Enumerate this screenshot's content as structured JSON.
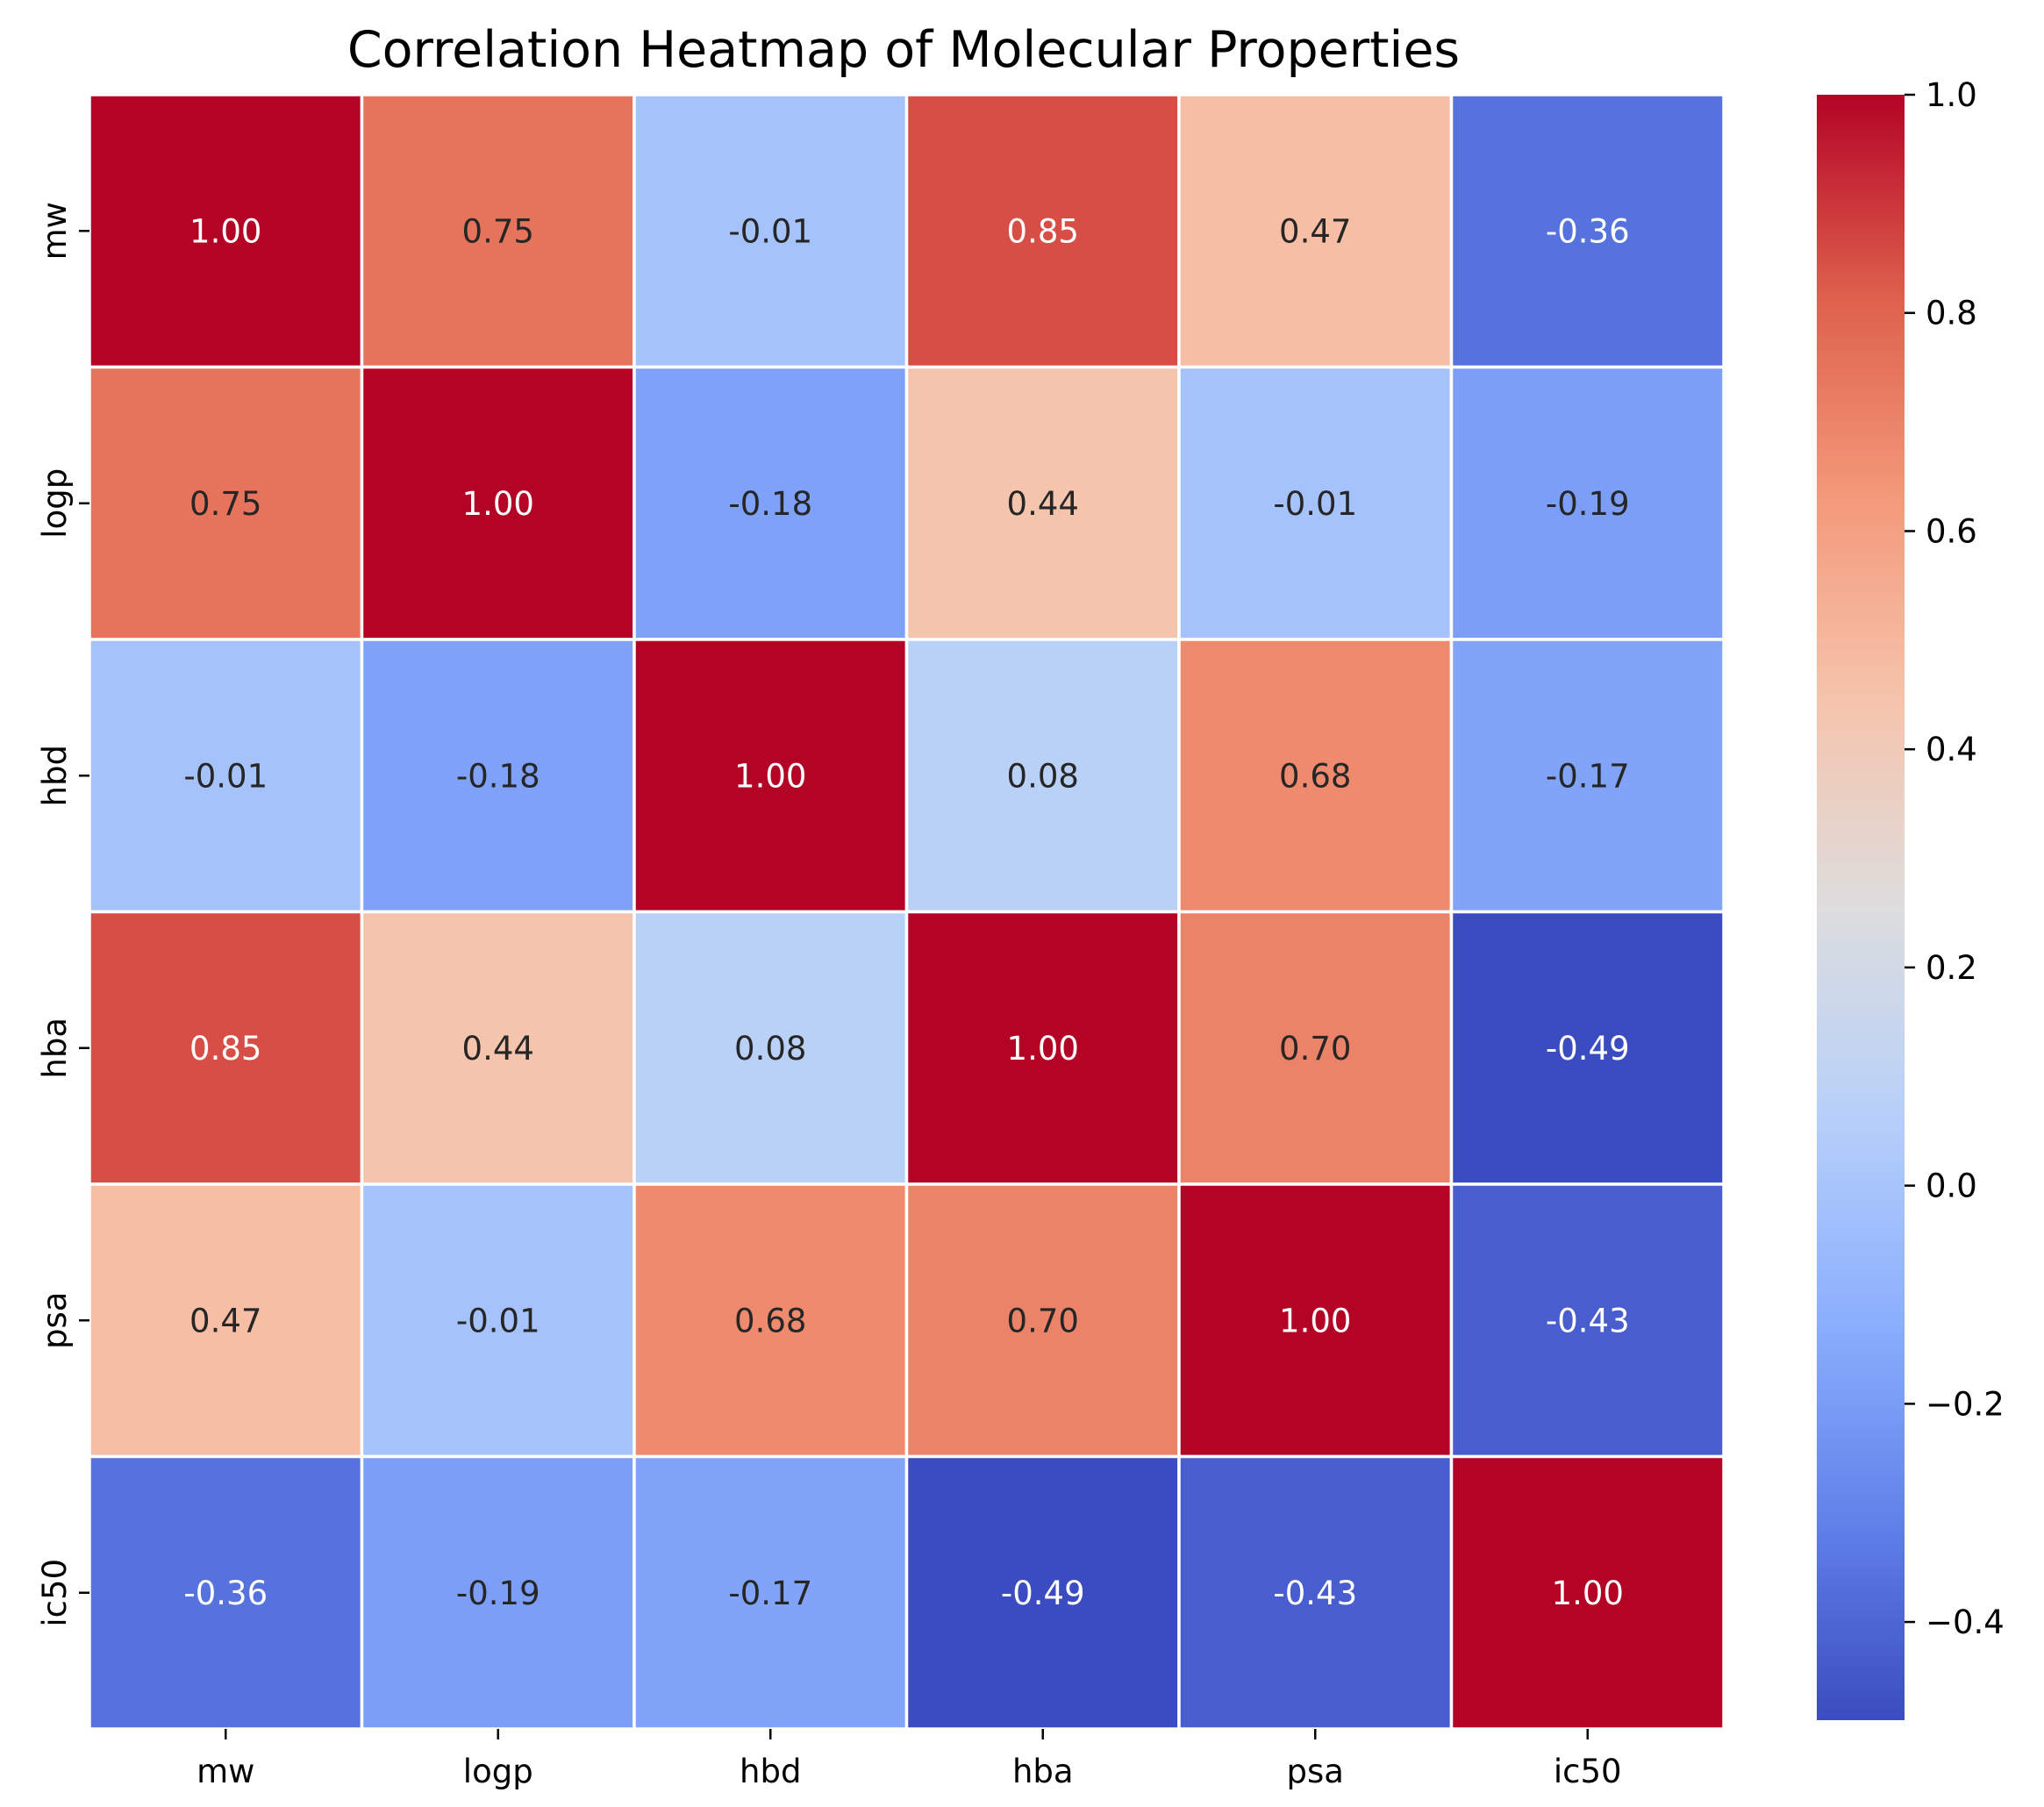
{
  "chart_data": {
    "type": "heatmap",
    "title": "Correlation Heatmap of Molecular Properties",
    "x_labels": [
      "mw",
      "logp",
      "hbd",
      "hba",
      "psa",
      "ic50"
    ],
    "y_labels": [
      "mw",
      "logp",
      "hbd",
      "hba",
      "psa",
      "ic50"
    ],
    "values": [
      [
        1.0,
        0.75,
        -0.01,
        0.85,
        0.47,
        -0.36
      ],
      [
        0.75,
        1.0,
        -0.18,
        0.44,
        -0.01,
        -0.19
      ],
      [
        -0.01,
        -0.18,
        1.0,
        0.08,
        0.68,
        -0.17
      ],
      [
        0.85,
        0.44,
        0.08,
        1.0,
        0.7,
        -0.49
      ],
      [
        0.47,
        -0.01,
        0.68,
        0.7,
        1.0,
        -0.43
      ],
      [
        -0.36,
        -0.19,
        -0.17,
        -0.49,
        -0.43,
        1.0
      ]
    ],
    "value_format": "2 decimals",
    "colormap": "coolwarm",
    "vmin": -0.49,
    "vmax": 1.0,
    "colorbar_ticks": [
      "1.0",
      "0.8",
      "0.6",
      "0.4",
      "0.2",
      "0.0",
      "−0.2",
      "−0.4"
    ],
    "colorbar_tick_values": [
      1.0,
      0.8,
      0.6,
      0.4,
      0.2,
      0.0,
      -0.2,
      -0.4
    ],
    "grid": false,
    "cell_border_color": "#ffffff",
    "legend": "colorbar-right"
  }
}
